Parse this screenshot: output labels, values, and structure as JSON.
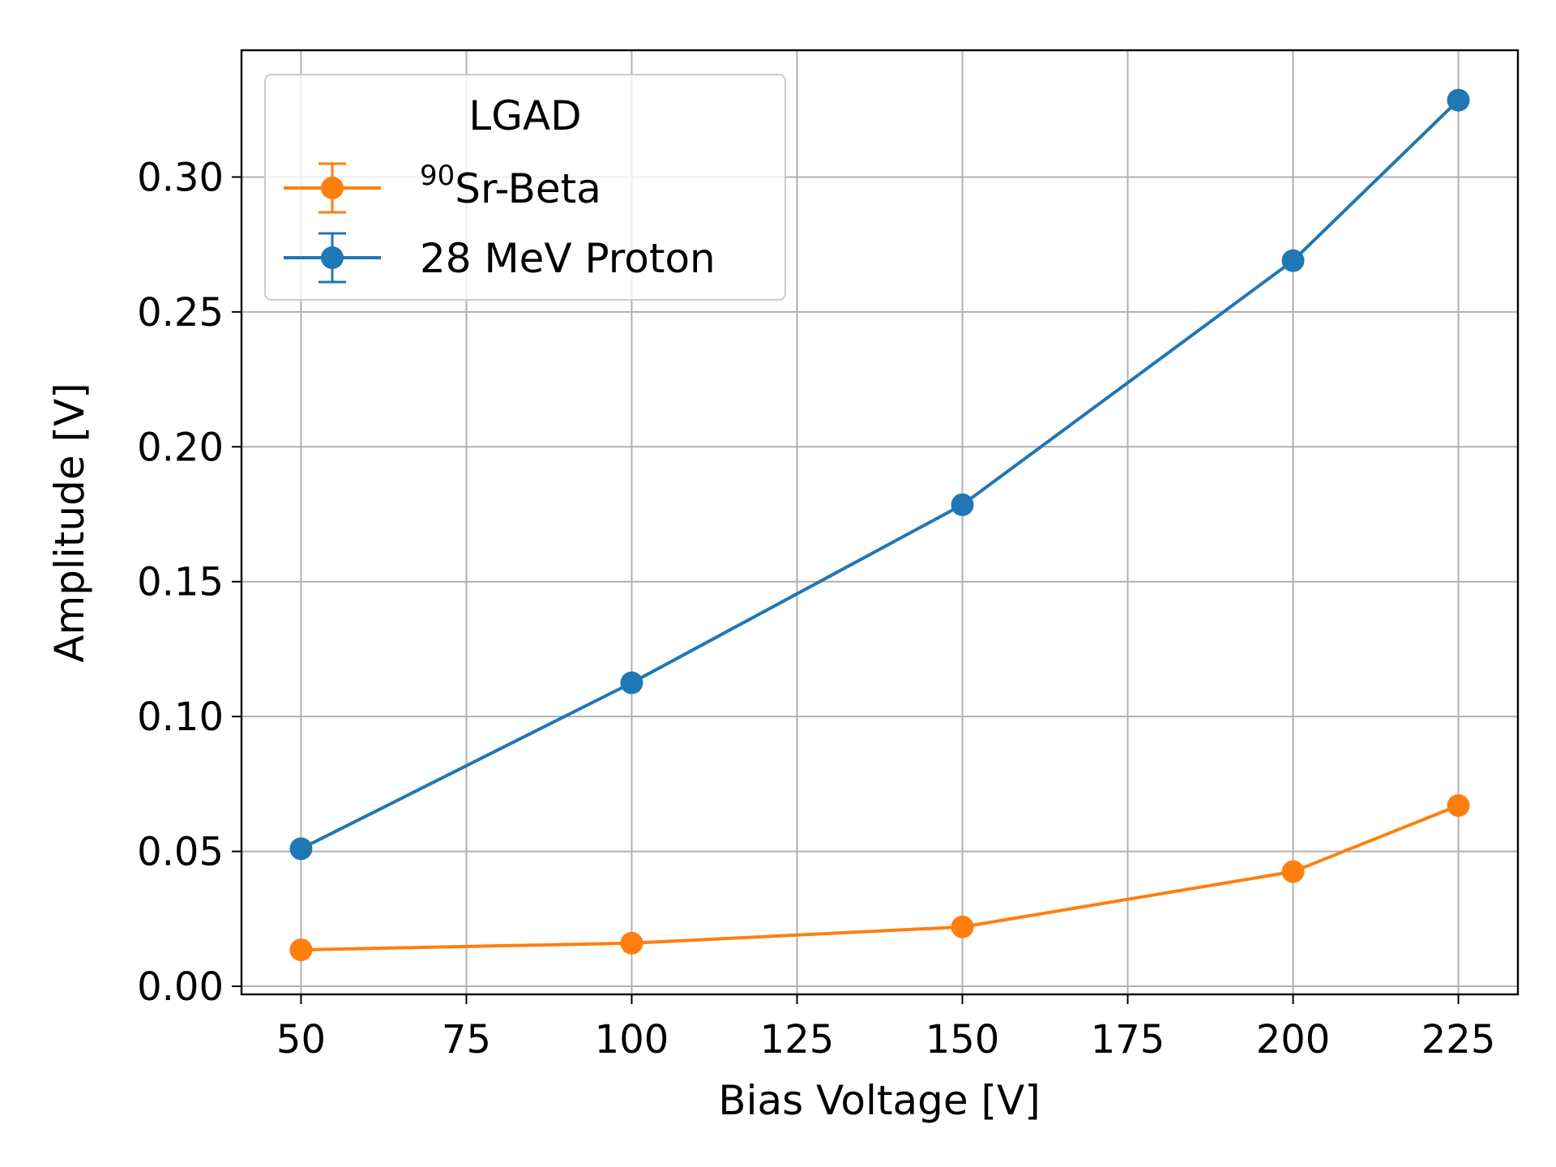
{
  "chart_data": {
    "type": "line",
    "title": "",
    "xlabel": "Bias Voltage [V]",
    "ylabel": "Amplitude [V]",
    "xlim": [
      41,
      234
    ],
    "ylim": [
      -0.003,
      0.347
    ],
    "grid": true,
    "x_ticks": [
      50,
      75,
      100,
      125,
      150,
      175,
      200,
      225
    ],
    "x_tick_labels": [
      "50",
      "75",
      "100",
      "125",
      "150",
      "175",
      "200",
      "225"
    ],
    "y_ticks": [
      0.0,
      0.05,
      0.1,
      0.15,
      0.2,
      0.25,
      0.3
    ],
    "y_tick_labels": [
      "0.00",
      "0.05",
      "0.10",
      "0.15",
      "0.20",
      "0.25",
      "0.30"
    ],
    "legend": {
      "title": "LGAD",
      "position": "top-left"
    },
    "series": [
      {
        "name": "Sr-Beta",
        "name_sup": "90",
        "color": "#ff7f0e",
        "x": [
          50,
          100,
          150,
          200,
          225
        ],
        "y": [
          0.0135,
          0.016,
          0.022,
          0.0425,
          0.067
        ],
        "yerr": [
          0.0008,
          0.0008,
          0.0008,
          0.0012,
          0.0015
        ]
      },
      {
        "name": "28 MeV Proton",
        "name_sup": "",
        "color": "#1f77b4",
        "x": [
          50,
          100,
          150,
          200,
          225
        ],
        "y": [
          0.051,
          0.1125,
          0.1785,
          0.269,
          0.3285
        ],
        "yerr": [
          0.001,
          0.0012,
          0.0015,
          0.0012,
          0.0015
        ]
      }
    ]
  }
}
